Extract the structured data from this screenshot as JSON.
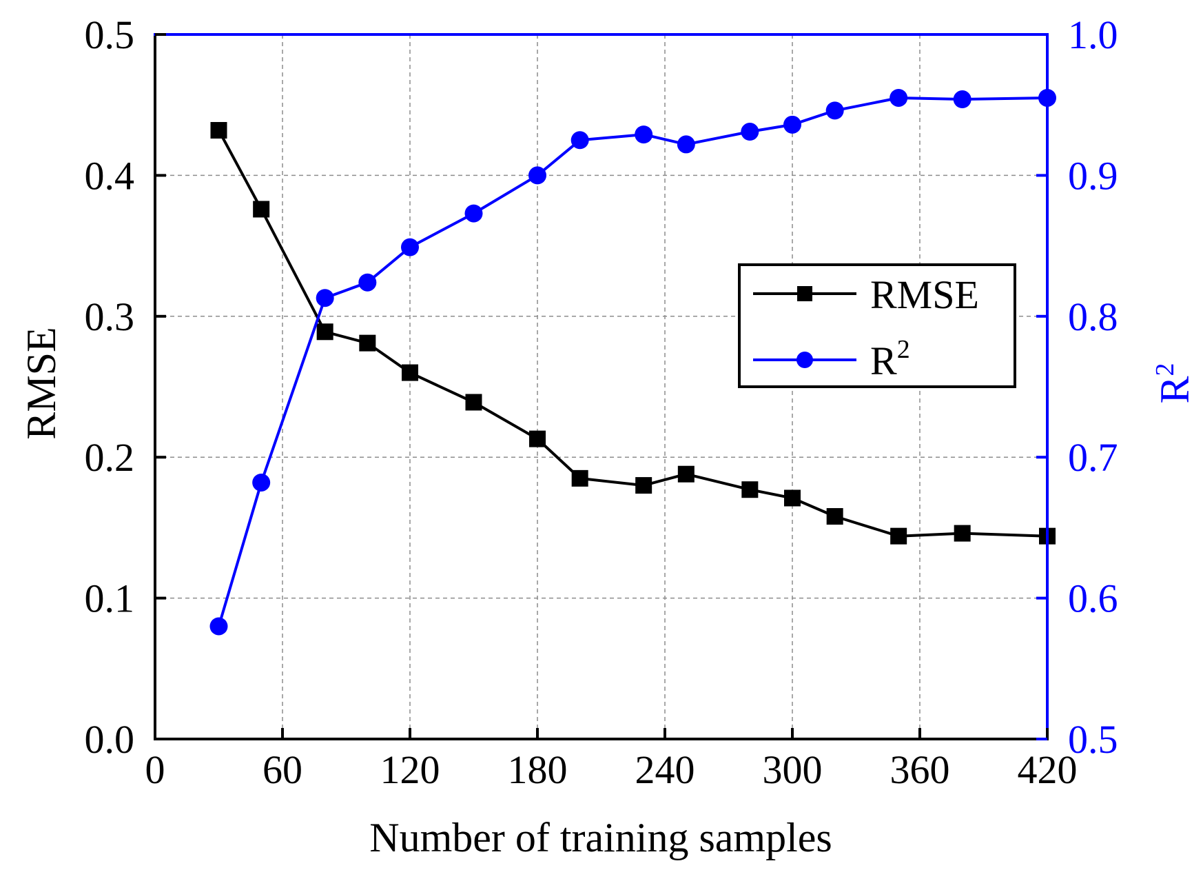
{
  "colors": {
    "rmse": "#000000",
    "r2": "#0000ff",
    "grid": "#8c8c8c",
    "background": "#ffffff"
  },
  "chart_data": {
    "type": "line",
    "xlabel": "Number of training samples",
    "ylabel_left": "RMSE",
    "ylabel_right": "R",
    "ylabel_right_superscript": "2",
    "xlim": [
      0,
      420
    ],
    "ylim_left": [
      0.0,
      0.5
    ],
    "ylim_right": [
      0.5,
      1.0
    ],
    "grid": true,
    "x_ticks": [
      "0",
      "60",
      "120",
      "180",
      "240",
      "300",
      "360",
      "420"
    ],
    "x_tick_values": [
      0,
      60,
      120,
      180,
      240,
      300,
      360,
      420
    ],
    "y_left_ticks": [
      "0.0",
      "0.1",
      "0.2",
      "0.3",
      "0.4",
      "0.5"
    ],
    "y_left_tick_values": [
      0.0,
      0.1,
      0.2,
      0.3,
      0.4,
      0.5
    ],
    "y_right_ticks": [
      "0.5",
      "0.6",
      "0.7",
      "0.8",
      "0.9",
      "1.0"
    ],
    "y_right_tick_values": [
      0.5,
      0.6,
      0.7,
      0.8,
      0.9,
      1.0
    ],
    "x": [
      30,
      50,
      80,
      100,
      120,
      150,
      180,
      200,
      230,
      250,
      280,
      300,
      320,
      350,
      380,
      420
    ],
    "series": [
      {
        "name": "RMSE",
        "axis": "left",
        "marker": "square",
        "values": [
          0.432,
          0.376,
          0.289,
          0.281,
          0.26,
          0.239,
          0.213,
          0.185,
          0.18,
          0.188,
          0.177,
          0.171,
          0.158,
          0.144,
          0.146,
          0.144
        ]
      },
      {
        "name": "R",
        "name_superscript": "2",
        "axis": "right",
        "marker": "circle",
        "values": [
          0.58,
          0.682,
          0.813,
          0.824,
          0.849,
          0.873,
          0.9,
          0.925,
          0.929,
          0.922,
          0.931,
          0.936,
          0.946,
          0.955,
          0.954,
          0.955
        ]
      }
    ],
    "legend_position": "center-right"
  }
}
